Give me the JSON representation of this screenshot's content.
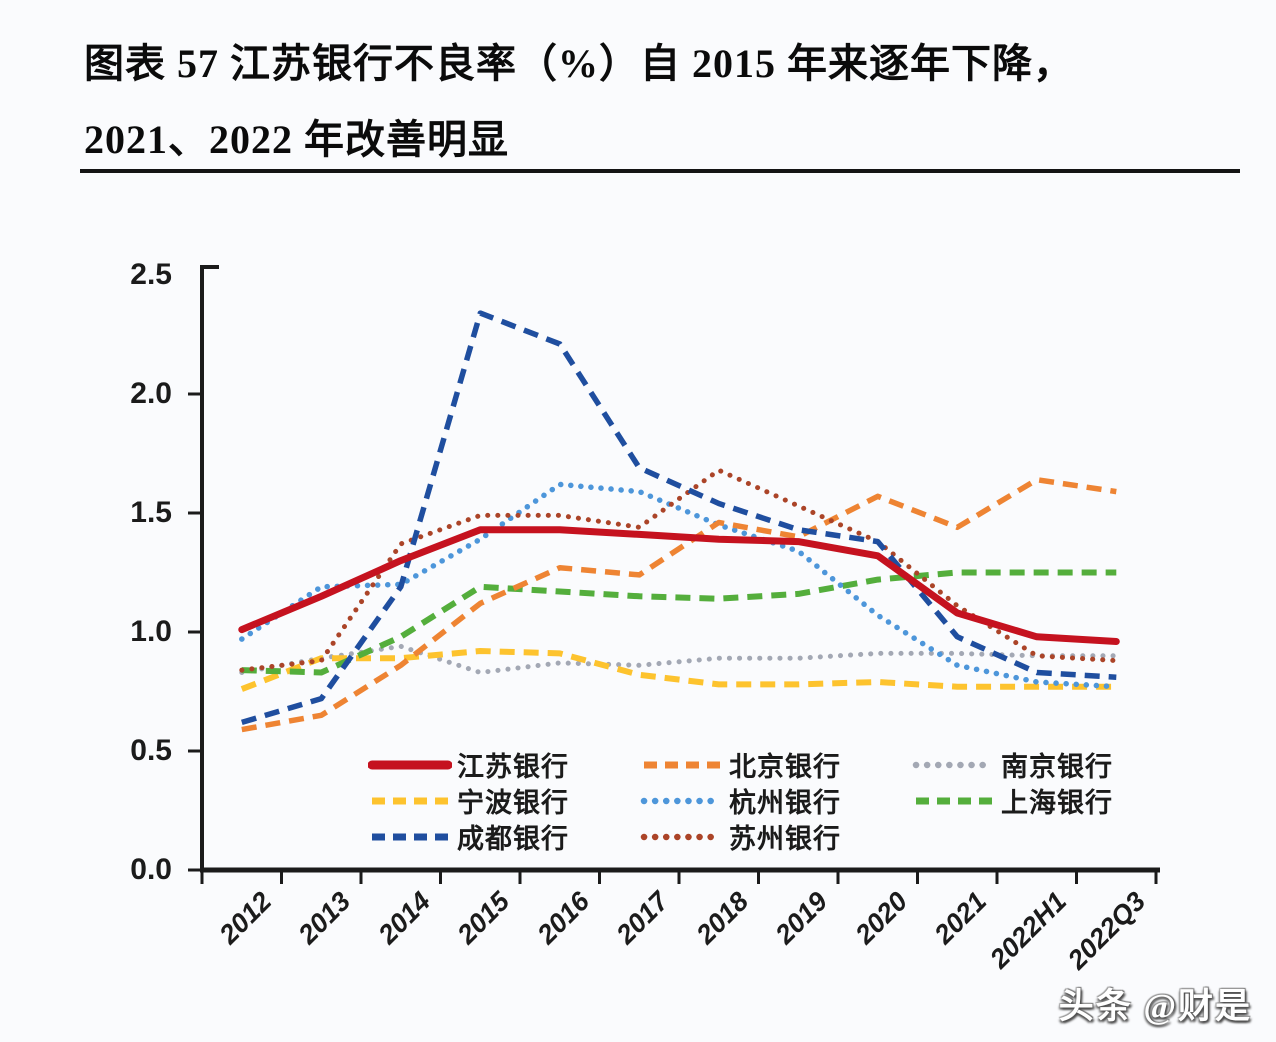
{
  "page": {
    "background": "#fafbfd"
  },
  "title": {
    "line1": "图表 57 江苏银行不良率（%）自 2015 年来逐年下降，",
    "line2": "2021、2022 年改善明显"
  },
  "watermark": "头条 @财是",
  "chart_data": {
    "type": "line",
    "title": "江苏银行不良率（%）自 2015 年来逐年下降，2021、2022 年改善明显",
    "xlabel": "",
    "ylabel": "",
    "ylim": [
      0,
      2.5
    ],
    "grid": false,
    "legend_position": "inside-bottom-left",
    "axis_color": "#1b1b1b",
    "y_ticks": [
      "0.0",
      "0.5",
      "1.0",
      "1.5",
      "2.0",
      "2.5"
    ],
    "categories": [
      "2012",
      "2013",
      "2014",
      "2015",
      "2016",
      "2017",
      "2018",
      "2019",
      "2020",
      "2021",
      "2022H1",
      "2022Q3"
    ],
    "series": [
      {
        "key": "jiangsu",
        "name": "江苏银行",
        "color": "#c5121f",
        "style": "solid",
        "width": 7,
        "values": [
          1.01,
          1.15,
          1.3,
          1.43,
          1.43,
          1.41,
          1.39,
          1.38,
          1.32,
          1.08,
          0.98,
          0.96
        ]
      },
      {
        "key": "beijing",
        "name": "北京银行",
        "color": "#ee8433",
        "style": "dashed",
        "width": 5.5,
        "values": [
          0.59,
          0.65,
          0.86,
          1.12,
          1.27,
          1.24,
          1.46,
          1.4,
          1.57,
          1.44,
          1.64,
          1.59
        ]
      },
      {
        "key": "nanjing",
        "name": "南京银行",
        "color": "#a3a8b4",
        "style": "dotted",
        "width": 5,
        "values": [
          0.83,
          0.89,
          0.94,
          0.83,
          0.87,
          0.86,
          0.89,
          0.89,
          0.91,
          0.91,
          0.9,
          0.9
        ]
      },
      {
        "key": "ningbo",
        "name": "宁波银行",
        "color": "#fdc32e",
        "style": "dashed",
        "width": 6,
        "values": [
          0.76,
          0.89,
          0.89,
          0.92,
          0.91,
          0.82,
          0.78,
          0.78,
          0.79,
          0.77,
          0.77,
          0.77
        ]
      },
      {
        "key": "hangzhou",
        "name": "杭州银行",
        "color": "#4d96da",
        "style": "dotted",
        "width": 5.5,
        "values": [
          0.97,
          1.19,
          1.2,
          1.39,
          1.62,
          1.59,
          1.45,
          1.34,
          1.07,
          0.86,
          0.79,
          0.77
        ]
      },
      {
        "key": "shanghai",
        "name": "上海银行",
        "color": "#54ae3c",
        "style": "dashed",
        "width": 6,
        "values": [
          0.84,
          0.83,
          0.98,
          1.19,
          1.17,
          1.15,
          1.14,
          1.16,
          1.22,
          1.25,
          1.25,
          1.25
        ]
      },
      {
        "key": "chengdu",
        "name": "成都银行",
        "color": "#1f4e9f",
        "style": "dashed",
        "width": 5.5,
        "values": [
          0.62,
          0.72,
          1.19,
          2.34,
          2.21,
          1.69,
          1.54,
          1.43,
          1.38,
          0.98,
          0.83,
          0.81
        ]
      },
      {
        "key": "suzhou",
        "name": "苏州银行",
        "color": "#ab4428",
        "style": "dotted",
        "width": 5,
        "values": [
          0.84,
          0.88,
          1.37,
          1.49,
          1.49,
          1.44,
          1.68,
          1.53,
          1.38,
          1.11,
          0.9,
          0.88
        ]
      }
    ]
  }
}
